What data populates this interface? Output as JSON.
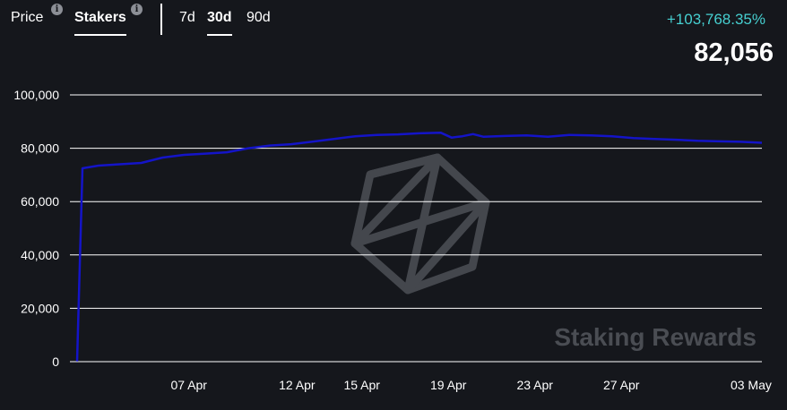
{
  "tabs": {
    "price_label": "Price",
    "stakers_label": "Stakers",
    "range_7d": "7d",
    "range_30d": "30d",
    "range_90d": "90d"
  },
  "info_icon_glyph": "i",
  "summary": {
    "change": "+103,768.35%",
    "value": "82,056"
  },
  "watermark": "Staking Rewards",
  "colors": {
    "line": "#1414c8",
    "change": "#46cfd0",
    "background": "#15171c",
    "grid": "#ffffff"
  },
  "chart_data": {
    "type": "line",
    "title": "",
    "xlabel": "",
    "ylabel": "",
    "ylim": [
      0,
      100000
    ],
    "xlim": [
      "2025-04-02",
      "2025-05-04"
    ],
    "yticks": [
      {
        "value": 0,
        "label": "0"
      },
      {
        "value": 20000,
        "label": "20,000"
      },
      {
        "value": 40000,
        "label": "40,000"
      },
      {
        "value": 60000,
        "label": "60,000"
      },
      {
        "value": 80000,
        "label": "80,000"
      },
      {
        "value": 100000,
        "label": "100,000"
      }
    ],
    "xticks": [
      {
        "date": "2025-04-07",
        "label": "07 Apr"
      },
      {
        "date": "2025-04-12",
        "label": "12 Apr"
      },
      {
        "date": "2025-04-15",
        "label": "15 Apr"
      },
      {
        "date": "2025-04-19",
        "label": "19 Apr"
      },
      {
        "date": "2025-04-23",
        "label": "23 Apr"
      },
      {
        "date": "2025-04-27",
        "label": "27 Apr"
      },
      {
        "date": "2025-05-03",
        "label": "03 May"
      }
    ],
    "grid": true,
    "series": [
      {
        "values": [
          {
            "date": "2025-04-02T00:00",
            "y": 100
          },
          {
            "date": "2025-04-02T06:00",
            "y": 72500
          },
          {
            "date": "2025-04-03T00:00",
            "y": 73500
          },
          {
            "date": "2025-04-04T00:00",
            "y": 74000
          },
          {
            "date": "2025-04-05T00:00",
            "y": 74500
          },
          {
            "date": "2025-04-06T00:00",
            "y": 76500
          },
          {
            "date": "2025-04-07T00:00",
            "y": 77500
          },
          {
            "date": "2025-04-08T00:00",
            "y": 78000
          },
          {
            "date": "2025-04-09T00:00",
            "y": 78500
          },
          {
            "date": "2025-04-10T00:00",
            "y": 80000
          },
          {
            "date": "2025-04-11T00:00",
            "y": 81000
          },
          {
            "date": "2025-04-12T00:00",
            "y": 81500
          },
          {
            "date": "2025-04-13T00:00",
            "y": 82500
          },
          {
            "date": "2025-04-14T00:00",
            "y": 83500
          },
          {
            "date": "2025-04-15T00:00",
            "y": 84500
          },
          {
            "date": "2025-04-16T00:00",
            "y": 85000
          },
          {
            "date": "2025-04-17T00:00",
            "y": 85200
          },
          {
            "date": "2025-04-18T00:00",
            "y": 85600
          },
          {
            "date": "2025-04-19T00:00",
            "y": 85800
          },
          {
            "date": "2025-04-19T12:00",
            "y": 84000
          },
          {
            "date": "2025-04-20T00:00",
            "y": 84500
          },
          {
            "date": "2025-04-20T12:00",
            "y": 85300
          },
          {
            "date": "2025-04-21T00:00",
            "y": 84300
          },
          {
            "date": "2025-04-22T00:00",
            "y": 84600
          },
          {
            "date": "2025-04-23T00:00",
            "y": 84800
          },
          {
            "date": "2025-04-24T00:00",
            "y": 84300
          },
          {
            "date": "2025-04-25T00:00",
            "y": 85000
          },
          {
            "date": "2025-04-26T00:00",
            "y": 84800
          },
          {
            "date": "2025-04-27T00:00",
            "y": 84500
          },
          {
            "date": "2025-04-28T00:00",
            "y": 83800
          },
          {
            "date": "2025-04-29T00:00",
            "y": 83500
          },
          {
            "date": "2025-04-30T00:00",
            "y": 83200
          },
          {
            "date": "2025-05-01T00:00",
            "y": 82800
          },
          {
            "date": "2025-05-02T00:00",
            "y": 82600
          },
          {
            "date": "2025-05-03T00:00",
            "y": 82400
          },
          {
            "date": "2025-05-04T00:00",
            "y": 82056
          }
        ]
      }
    ]
  }
}
